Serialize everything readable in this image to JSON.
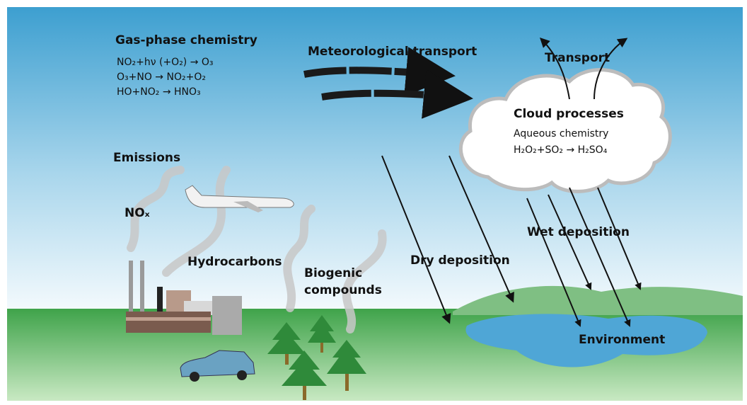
{
  "diagram": {
    "gas_phase": {
      "title": "Gas-phase chemistry",
      "equations": [
        "NO₂+hν (+O₂) → O₃",
        "O₃+NO → NO₂+O₂",
        "HO+NO₂ → HNO₃"
      ]
    },
    "meteorological_transport": "Meteorological transport",
    "transport": "Transport",
    "cloud": {
      "title": "Cloud processes",
      "subtitle": "Aqueous chemistry",
      "equation": "H₂O₂+SO₂ → H₂SO₄"
    },
    "emissions": {
      "title": "Emissions",
      "nox": "NOₓ",
      "hydrocarbons": "Hydrocarbons",
      "biogenic": [
        "Biogenic",
        "compounds"
      ]
    },
    "dry_deposition": "Dry deposition",
    "wet_deposition": "Wet deposition",
    "environment": "Environment"
  }
}
